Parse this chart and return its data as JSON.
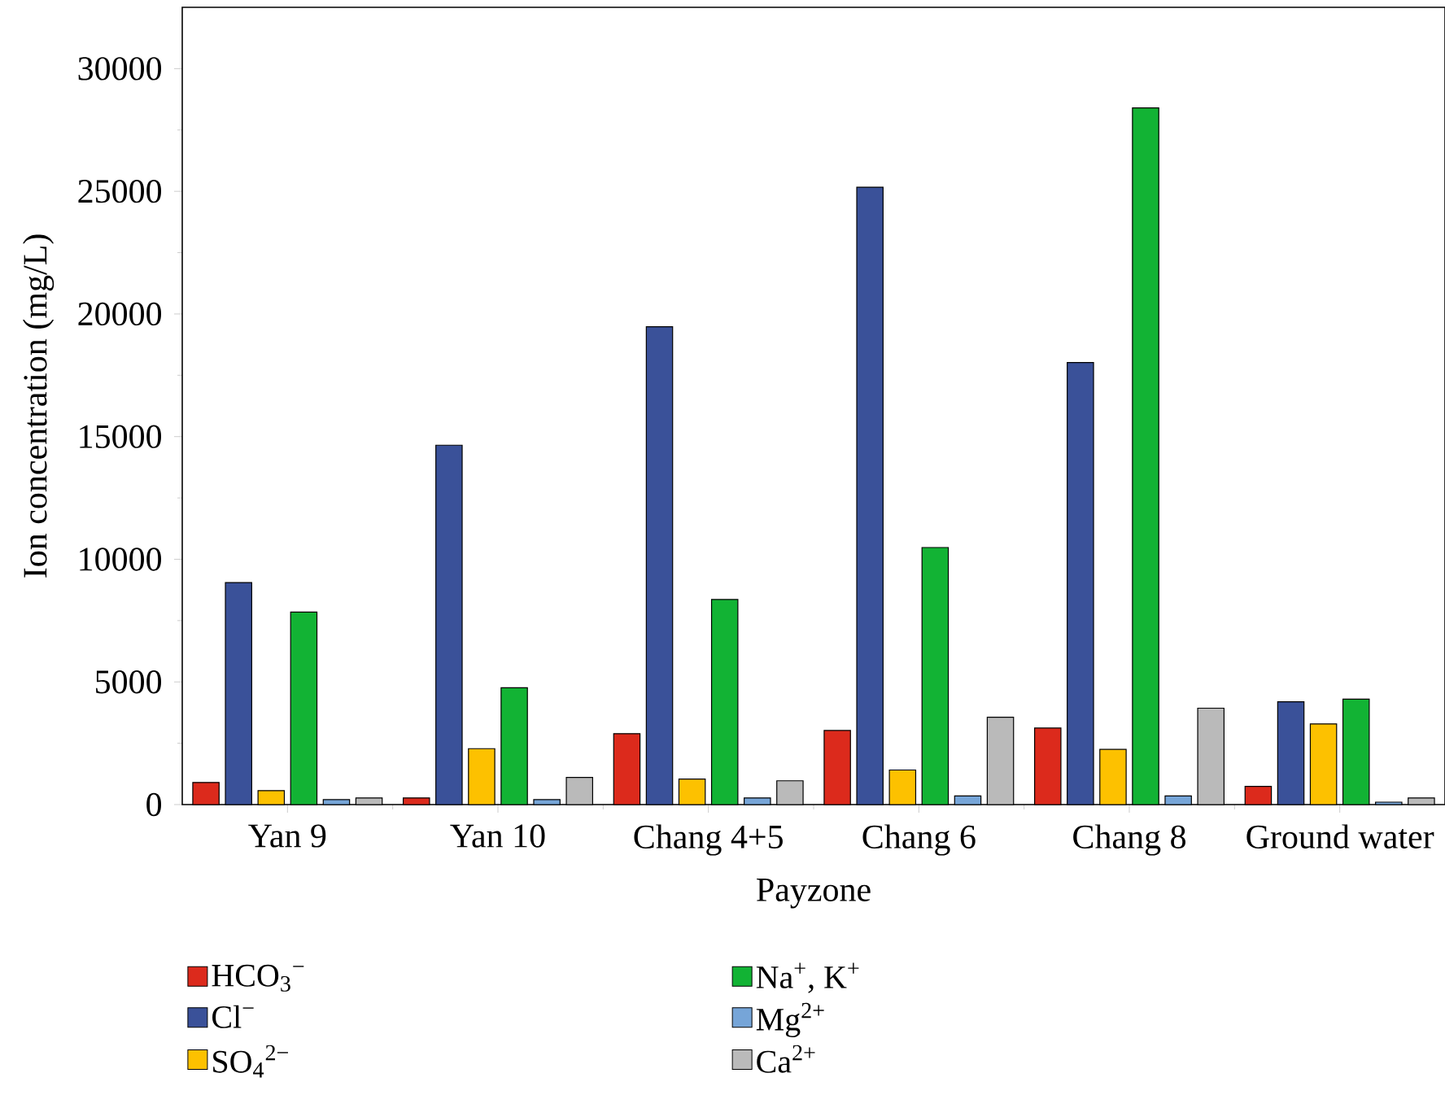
{
  "chart_data": {
    "type": "bar",
    "xlabel": "Payzone",
    "ylabel": "Ion concentration (mg/L)",
    "categories": [
      "Yan 9",
      "Yan 10",
      "Chang 4+5",
      "Chang 6",
      "Chang 8",
      "Ground water"
    ],
    "series": [
      {
        "name": "HCO$_{3}$$^{−}$",
        "color": "#dc2a1c",
        "values": [
          900,
          270,
          2890,
          3020,
          3120,
          740
        ]
      },
      {
        "name": "Cl$^{−}$",
        "color": "#3a5199",
        "values": [
          9050,
          14650,
          19480,
          25170,
          18020,
          4190
        ]
      },
      {
        "name": "SO$_{4}$$^{2−}$",
        "color": "#fdc100",
        "values": [
          570,
          2280,
          1040,
          1410,
          2250,
          3290
        ]
      },
      {
        "name": "Na$^{+}$, K$^{+}$",
        "color": "#12b334",
        "values": [
          7850,
          4760,
          8360,
          10480,
          28400,
          4300
        ]
      },
      {
        "name": "Mg$^{2+}$",
        "color": "#76a5d8",
        "values": [
          200,
          200,
          270,
          350,
          350,
          100
        ]
      },
      {
        "name": "Ca$^{2+}$",
        "color": "#bababa",
        "values": [
          270,
          1110,
          970,
          3560,
          3930,
          270
        ]
      }
    ],
    "ylim": [
      0,
      32500
    ],
    "yticks": [
      0,
      5000,
      10000,
      15000,
      20000,
      25000,
      30000
    ],
    "grid": false,
    "legend": "bottom"
  }
}
